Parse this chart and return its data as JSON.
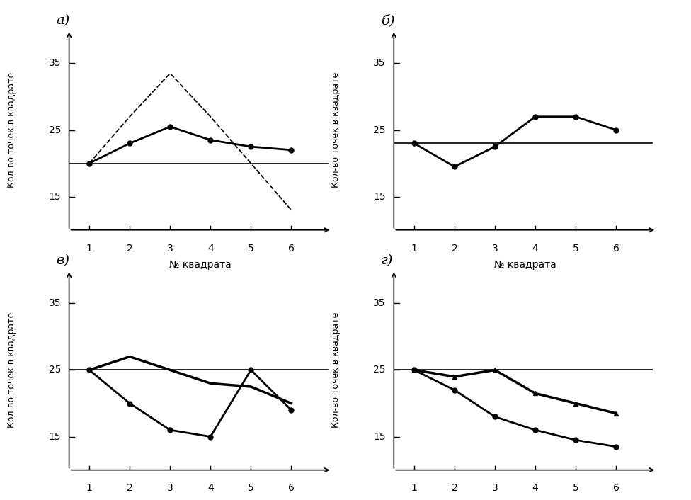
{
  "subplot_labels": [
    "а)",
    "б)",
    "в)",
    "г)"
  ],
  "xlabel": "№ квадрата",
  "ylabel": "Кол-во точек в квадрате",
  "x": [
    1,
    2,
    3,
    4,
    5,
    6
  ],
  "a_solid_y": [
    20,
    23,
    25.5,
    23.5,
    22.5,
    22
  ],
  "a_dashed_y": [
    20,
    27,
    33.5,
    27,
    20,
    13
  ],
  "a_hline": 20,
  "b_solid_y": [
    23,
    19.5,
    22.5,
    27,
    27,
    25
  ],
  "b_hline": 23,
  "v_line1_y": [
    25,
    20,
    16,
    15,
    25,
    19
  ],
  "v_line2_y": [
    25,
    27,
    25,
    23,
    22.5,
    20
  ],
  "v_hline": 25,
  "g_line1_y": [
    25,
    22,
    18,
    16,
    14.5,
    13.5
  ],
  "g_line2_y": [
    25,
    24,
    25,
    21.5,
    20,
    18.5
  ],
  "g_hline": 25,
  "ylim_low": 10,
  "ylim_high": 40,
  "yticks": [
    15,
    25,
    35
  ],
  "xticks": [
    1,
    2,
    3,
    4,
    5,
    6
  ],
  "line_color": "#000000",
  "bg_color": "#ffffff",
  "markersize": 5,
  "linewidth": 2.0
}
